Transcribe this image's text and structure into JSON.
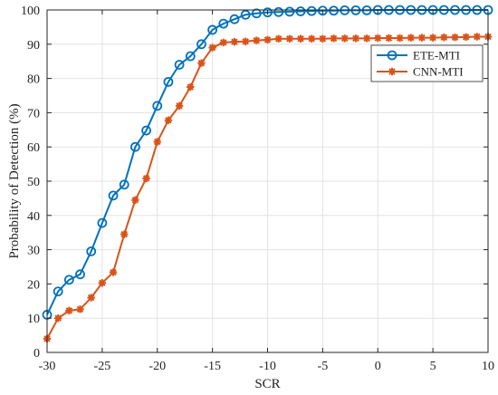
{
  "chart_data": {
    "type": "line",
    "xlabel": "SCR",
    "ylabel": "Probability of  Detection (%)",
    "xlim": [
      -30,
      10
    ],
    "ylim": [
      0,
      100
    ],
    "xticks": [
      -30,
      -25,
      -20,
      -15,
      -10,
      -5,
      0,
      5,
      10
    ],
    "yticks": [
      0,
      10,
      20,
      30,
      40,
      50,
      60,
      70,
      80,
      90,
      100
    ],
    "grid": true,
    "legend_position": "top-right",
    "x": [
      -30,
      -29,
      -28,
      -27,
      -26,
      -25,
      -24,
      -23,
      -22,
      -21,
      -20,
      -19,
      -18,
      -17,
      -16,
      -15,
      -14,
      -13,
      -12,
      -11,
      -10,
      -9,
      -8,
      -7,
      -6,
      -5,
      -4,
      -3,
      -2,
      -1,
      0,
      1,
      2,
      3,
      4,
      5,
      6,
      7,
      8,
      9,
      10
    ],
    "series": [
      {
        "name": "ETE-MTI",
        "color": "#0072BD",
        "marker": "circle",
        "values": [
          11,
          17.8,
          21.2,
          22.8,
          29.5,
          37.8,
          45.8,
          49,
          60,
          64.8,
          72,
          79,
          84,
          86.5,
          90,
          94.2,
          96,
          97.3,
          98.6,
          99,
          99.3,
          99.4,
          99.5,
          99.6,
          99.7,
          99.8,
          99.8,
          99.9,
          99.9,
          99.9,
          100,
          100,
          100,
          100,
          100,
          100,
          100,
          100,
          100,
          100,
          100
        ]
      },
      {
        "name": "CNN-MTI",
        "color": "#D95319",
        "marker": "asterisk",
        "values": [
          4,
          10,
          12.2,
          12.6,
          16,
          20.3,
          23.4,
          34.5,
          44.5,
          50.8,
          61.5,
          67.8,
          72,
          77.5,
          84.5,
          89,
          90.5,
          90.7,
          90.8,
          91.1,
          91.3,
          91.6,
          91.6,
          91.6,
          91.6,
          91.6,
          91.7,
          91.7,
          91.7,
          91.7,
          91.8,
          91.8,
          91.8,
          91.9,
          91.9,
          91.9,
          92,
          92,
          92.1,
          92.2,
          92.2
        ]
      }
    ]
  }
}
